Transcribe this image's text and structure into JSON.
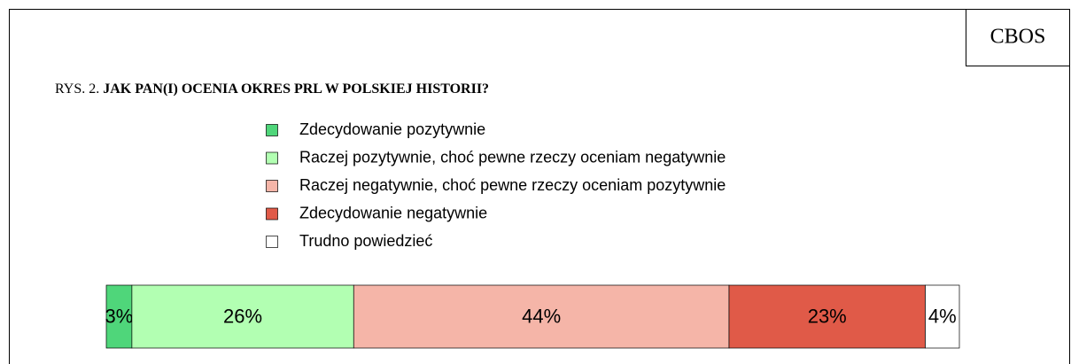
{
  "chart_data": {
    "type": "stacked-bar",
    "source": "CBOS",
    "figure_label": "RYS. 2.",
    "title": "JAK PAN(I) OCENIA OKRES PRL W POLSKIEJ HISTORII?",
    "xlim": [
      0,
      100
    ],
    "series": [
      {
        "name": "Zdecydowanie pozytywnie",
        "color": "#4fd67a",
        "values": [
          3
        ],
        "value_labels": [
          "3%"
        ]
      },
      {
        "name": "Raczej pozytywnie, choć pewne rzeczy oceniam negatywnie",
        "color": "#b2ffb2",
        "values": [
          26
        ],
        "value_labels": [
          "26%"
        ]
      },
      {
        "name": "Raczej negatywnie, choć pewne rzeczy oceniam pozytywnie",
        "color": "#f5b5a8",
        "values": [
          44
        ],
        "value_labels": [
          "44%"
        ]
      },
      {
        "name": "Zdecydowanie negatywnie",
        "color": "#e05a48",
        "values": [
          23
        ],
        "value_labels": [
          "23%"
        ]
      },
      {
        "name": "Trudno powiedzieć",
        "color": "#ffffff",
        "values": [
          4
        ],
        "value_labels": [
          "4%"
        ]
      }
    ]
  }
}
